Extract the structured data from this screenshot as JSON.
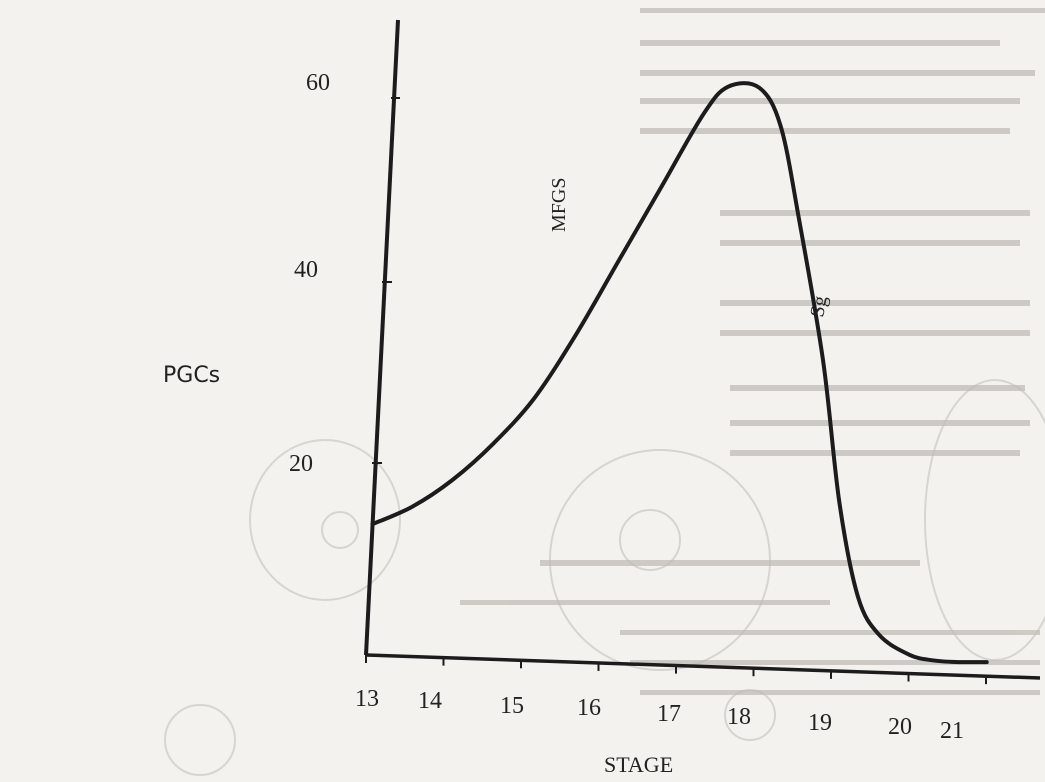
{
  "chart_data": {
    "type": "line",
    "title": "",
    "xlabel": "STAGE",
    "ylabel": "PGCs",
    "x_ticks": [
      "13",
      "14",
      "15",
      "16",
      "17",
      "18",
      "19",
      "20",
      "21"
    ],
    "y_ticks": [
      "20",
      "40",
      "60"
    ],
    "xlim": [
      13,
      21
    ],
    "ylim": [
      0,
      65
    ],
    "grid": false,
    "annotations": [
      "MFGS",
      "Sg"
    ],
    "series": [
      {
        "x": [
          13,
          13.5,
          14,
          14.5,
          15,
          15.5,
          16,
          16.5,
          17,
          17.3,
          17.7,
          18,
          18.3,
          18.7,
          19,
          19.3,
          19.6,
          20,
          20.3,
          20.6,
          21
        ],
        "values": [
          14,
          16,
          19,
          23,
          28,
          35,
          43,
          51,
          59,
          62,
          62,
          58,
          48,
          33,
          18,
          8,
          4,
          2,
          1.5,
          1.4,
          1.5
        ]
      }
    ],
    "colors": {
      "line": "#1c1c1c",
      "axis": "#1c1c1c"
    }
  }
}
